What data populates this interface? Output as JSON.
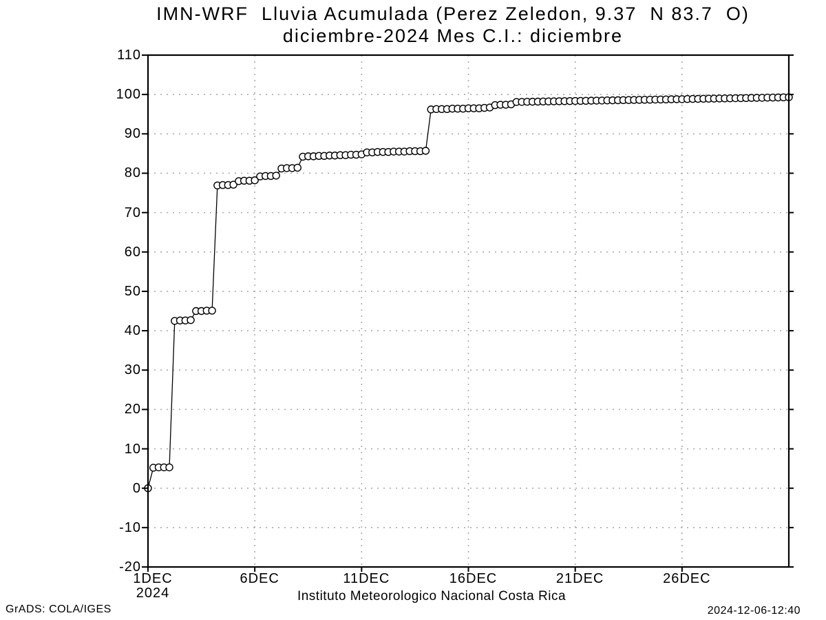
{
  "chart_data": {
    "type": "line",
    "title": "IMN-WRF  Lluvia Acumulada (Perez Zeledon, 9.37  N 83.7  O)",
    "subtitle": "diciembre-2024 Mes C.I.: diciembre",
    "xlabel": "Instituto Meteorologico Nacional Costa Rica",
    "footer_left": "GrADS: COLA/IGES",
    "footer_right": "2024-12-06-12:40",
    "ylim": [
      -20,
      110
    ],
    "ytick_step": 10,
    "yticks": [
      "110",
      "100",
      "90",
      "80",
      "70",
      "60",
      "50",
      "40",
      "30",
      "20",
      "10",
      "0",
      "-10",
      "-20"
    ],
    "xticks": [
      {
        "day": 1,
        "label": "1DEC",
        "sublabel": "2024"
      },
      {
        "day": 6,
        "label": "6DEC"
      },
      {
        "day": 11,
        "label": "11DEC"
      },
      {
        "day": 16,
        "label": "16DEC"
      },
      {
        "day": 21,
        "label": "21DEC"
      },
      {
        "day": 26,
        "label": "26DEC"
      }
    ],
    "x_axis": {
      "start_day": 1,
      "end_day": 31,
      "points_per_day": 4,
      "month": "DEC",
      "year": "2024"
    },
    "grid": {
      "show": true,
      "color": "#a9a9a9",
      "style": "dotted"
    },
    "line_color": "#000000",
    "marker": {
      "shape": "circle",
      "fill": "#ffffff",
      "stroke": "#000000",
      "radius_px": 5
    },
    "series": [
      {
        "name": "lluvia_acumulada_mm",
        "values": [
          0,
          5.2,
          5.3,
          5.3,
          5.3,
          42.5,
          42.6,
          42.6,
          42.7,
          45.0,
          45.0,
          45.1,
          45.1,
          76.9,
          77.0,
          77.0,
          77.1,
          78.0,
          78.1,
          78.1,
          78.2,
          79.2,
          79.3,
          79.3,
          79.4,
          81.2,
          81.3,
          81.3,
          81.4,
          84.2,
          84.3,
          84.3,
          84.4,
          84.4,
          84.5,
          84.5,
          84.6,
          84.6,
          84.7,
          84.7,
          84.8,
          85.3,
          85.3,
          85.4,
          85.4,
          85.4,
          85.5,
          85.5,
          85.5,
          85.6,
          85.6,
          85.6,
          85.7,
          96.2,
          96.3,
          96.3,
          96.3,
          96.4,
          96.4,
          96.4,
          96.5,
          96.5,
          96.5,
          96.6,
          96.7,
          97.3,
          97.4,
          97.4,
          97.5,
          98.1,
          98.12,
          98.15,
          98.17,
          98.19,
          98.22,
          98.24,
          98.26,
          98.29,
          98.31,
          98.33,
          98.36,
          98.38,
          98.4,
          98.43,
          98.45,
          98.47,
          98.5,
          98.52,
          98.54,
          98.57,
          98.59,
          98.61,
          98.64,
          98.66,
          98.68,
          98.71,
          98.73,
          98.75,
          98.78,
          98.8,
          98.82,
          98.85,
          98.87,
          98.89,
          98.92,
          98.94,
          98.96,
          98.99,
          99.01,
          99.03,
          99.06,
          99.08,
          99.1,
          99.13,
          99.15,
          99.17,
          99.2,
          99.22,
          99.24,
          99.27,
          99.3
        ]
      }
    ]
  }
}
